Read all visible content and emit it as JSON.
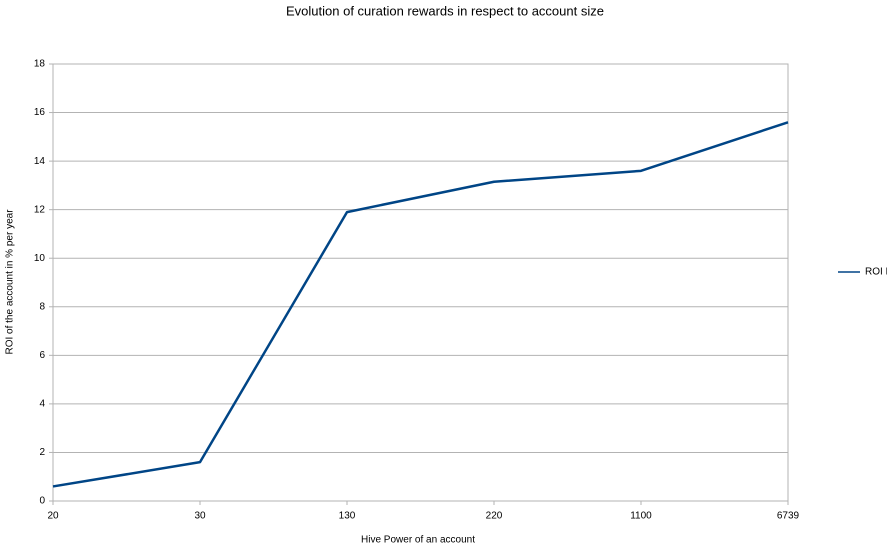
{
  "chart_data": {
    "type": "line",
    "title": "Evolution of curation rewards in respect to account size",
    "x_label": "Hive Power of an account",
    "y_label": "ROI of the account in % per year",
    "categories": [
      "20",
      "30",
      "130",
      "220",
      "1100",
      "6739"
    ],
    "series": [
      {
        "name": "ROI I",
        "color": "#004586",
        "values": [
          0.6,
          1.6,
          11.9,
          13.15,
          13.6,
          15.6
        ]
      }
    ],
    "ylim": [
      0,
      18
    ],
    "yticks": [
      0,
      2,
      4,
      6,
      8,
      10,
      12,
      14,
      16,
      18
    ],
    "grid": true,
    "legend": "right"
  }
}
